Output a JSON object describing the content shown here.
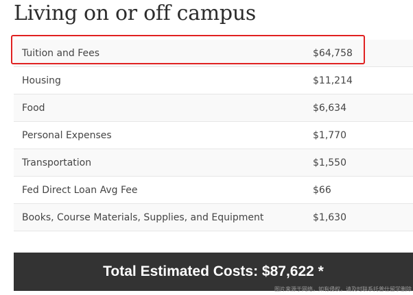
{
  "heading": "Living on or off campus",
  "rows": [
    {
      "label": "Tuition and Fees",
      "value": "$64,758"
    },
    {
      "label": "Housing",
      "value": "$11,214"
    },
    {
      "label": "Food",
      "value": "$6,634"
    },
    {
      "label": "Personal Expenses",
      "value": "$1,770"
    },
    {
      "label": "Transportation",
      "value": "$1,550"
    },
    {
      "label": "Fed Direct Loan Avg Fee",
      "value": "$66"
    },
    {
      "label": "Books, Course Materials, Supplies, and Equipment",
      "value": "$1,630"
    }
  ],
  "total": "Total Estimated Costs: $87,622 *",
  "watermark": "图片来源于网络，如有侵权，请及时联系托普仕留学删除",
  "colors": {
    "highlight": "#e02020",
    "total_bar": "#333333",
    "row_alt": "#f9f9f9"
  }
}
